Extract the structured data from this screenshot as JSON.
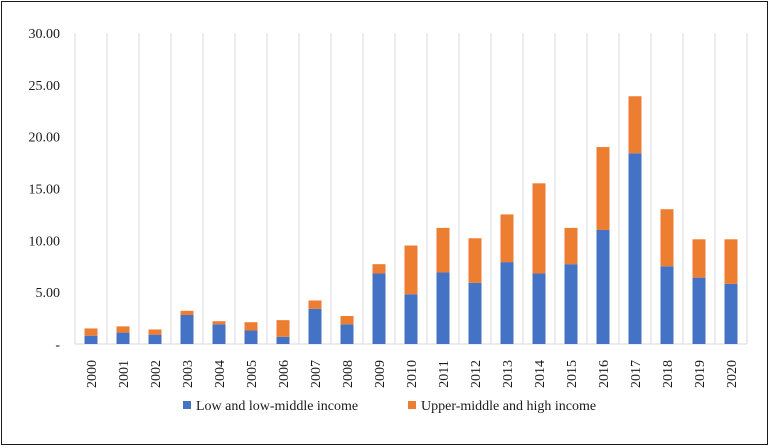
{
  "chart_data": {
    "type": "bar",
    "stacked": true,
    "categories": [
      "2000",
      "2001",
      "2002",
      "2003",
      "2004",
      "2005",
      "2006",
      "2007",
      "2008",
      "2009",
      "2010",
      "2011",
      "2012",
      "2013",
      "2014",
      "2015",
      "2016",
      "2017",
      "2018",
      "2019",
      "2020"
    ],
    "series": [
      {
        "name": "Low and low-middle income",
        "color": "#4472C4",
        "values": [
          0.8,
          1.1,
          0.9,
          2.8,
          1.9,
          1.3,
          0.7,
          3.4,
          1.9,
          6.8,
          4.8,
          6.9,
          5.9,
          7.9,
          6.8,
          7.7,
          11.0,
          18.4,
          7.5,
          6.4,
          5.8
        ]
      },
      {
        "name": "Upper-middle and high income",
        "color": "#ED7D31",
        "values": [
          0.7,
          0.6,
          0.5,
          0.4,
          0.3,
          0.8,
          1.6,
          0.8,
          0.8,
          0.9,
          4.7,
          4.3,
          4.3,
          4.6,
          8.7,
          3.5,
          8.0,
          5.5,
          5.5,
          3.7,
          4.3
        ]
      }
    ],
    "yticks": [
      "-",
      "5.00",
      "10.00",
      "15.00",
      "20.00",
      "25.00",
      "30.00"
    ],
    "ylim": [
      0,
      30
    ],
    "grid": "vertical category bands",
    "legend": "bottom-center",
    "title": "",
    "xlabel": "",
    "ylabel": ""
  }
}
